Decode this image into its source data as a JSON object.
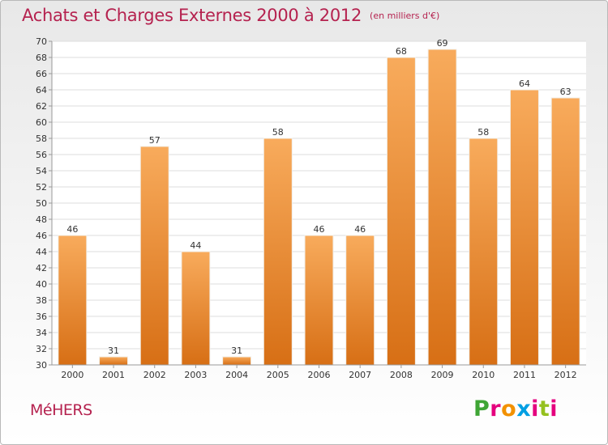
{
  "chart_data": {
    "type": "bar",
    "title": "Achats et Charges Externes 2000 à 2012",
    "unit": "(en milliers d'€)",
    "categories": [
      "2000",
      "2001",
      "2002",
      "2003",
      "2004",
      "2005",
      "2006",
      "2007",
      "2008",
      "2009",
      "2010",
      "2011",
      "2012"
    ],
    "values": [
      46,
      31,
      57,
      44,
      31,
      58,
      46,
      46,
      68,
      69,
      58,
      64,
      63
    ],
    "ylim": [
      30,
      70
    ],
    "yticks": [
      30,
      32,
      34,
      36,
      38,
      40,
      42,
      44,
      46,
      48,
      50,
      52,
      54,
      56,
      58,
      60,
      62,
      64,
      66,
      68,
      70
    ],
    "xlabel": "",
    "ylabel": "",
    "grid": "horizontal",
    "bar_color": "#f0822a",
    "data_labels": true
  },
  "footer": {
    "commune": "MéHERS",
    "brand": "Proxiti"
  },
  "colors": {
    "title": "#b5224f",
    "commune": "#b5224f",
    "bar_light": "#f8ab5c",
    "bar_dark": "#d76f15"
  }
}
